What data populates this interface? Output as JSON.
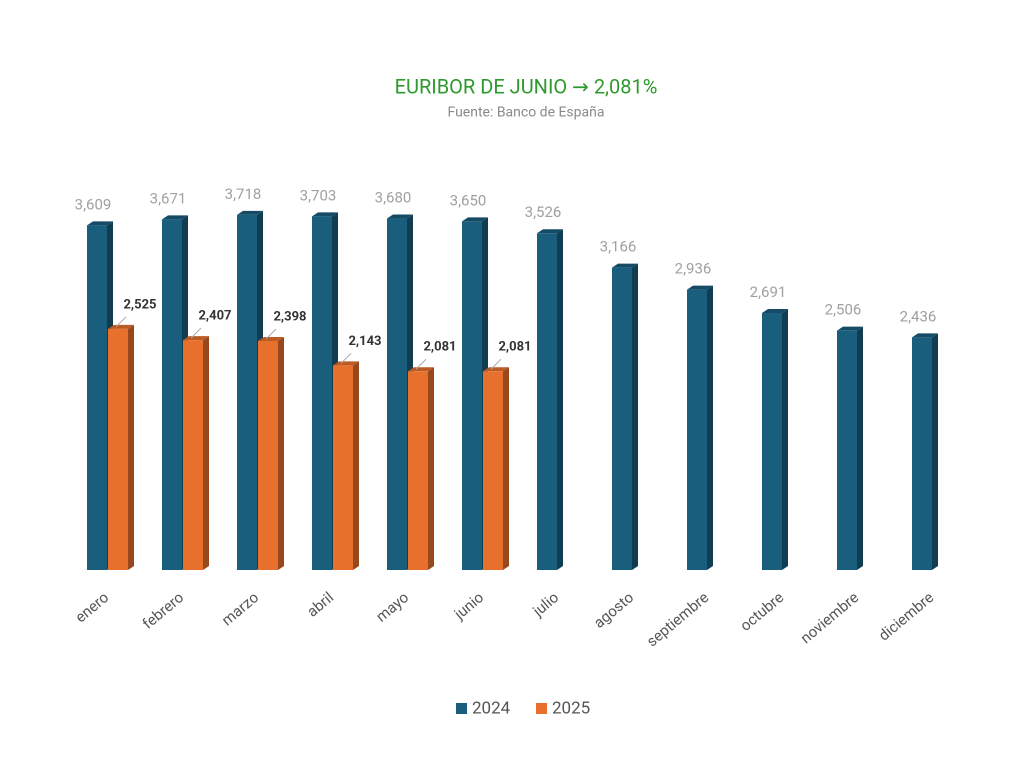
{
  "chart_data": {
    "type": "bar",
    "title": "EURIBOR DE JUNIO → 2,081%",
    "subtitle": "Fuente: Banco de España",
    "categories": [
      "enero",
      "febrero",
      "marzo",
      "abril",
      "mayo",
      "junio",
      "julio",
      "agosto",
      "septiembre",
      "octubre",
      "noviembre",
      "diciembre"
    ],
    "series": [
      {
        "name": "2024",
        "color": "#1a5e7e",
        "values": [
          3.609,
          3.671,
          3.718,
          3.703,
          3.68,
          3.65,
          3.526,
          3.166,
          2.936,
          2.691,
          2.506,
          2.436
        ],
        "value_labels": [
          "3,609",
          "3,671",
          "3,718",
          "3,703",
          "3,680",
          "3,650",
          "3,526",
          "3,166",
          "2,936",
          "2,691",
          "2,506",
          "2,436"
        ]
      },
      {
        "name": "2025",
        "color": "#e8702d",
        "values": [
          2.525,
          2.407,
          2.398,
          2.143,
          2.081,
          2.081,
          null,
          null,
          null,
          null,
          null,
          null
        ],
        "value_labels": [
          "2,525",
          "2,407",
          "2,398",
          "2,143",
          "2,081",
          "2,081",
          null,
          null,
          null,
          null,
          null,
          null
        ]
      }
    ],
    "ylim": [
      0,
      4
    ]
  }
}
